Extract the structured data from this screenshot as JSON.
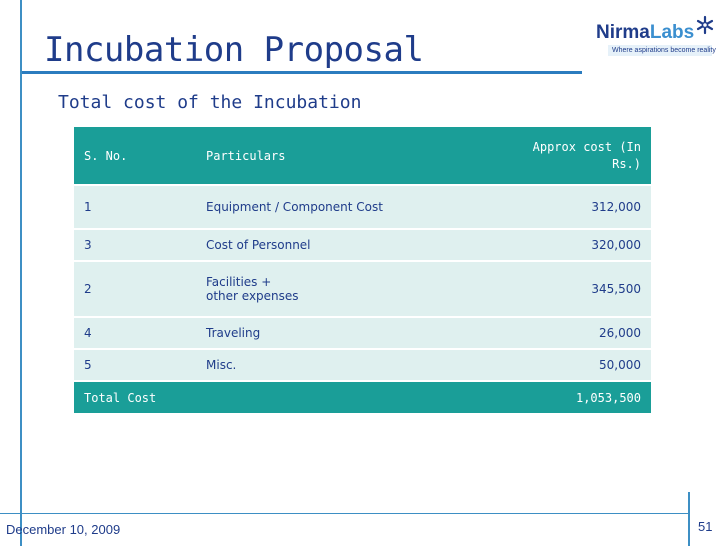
{
  "slide": {
    "title": "Incubation Proposal",
    "subtitle": "Total cost of the Incubation"
  },
  "logo": {
    "brand_part1": "Nirma",
    "brand_part2": "Labs",
    "tagline": "Where aspirations become reality"
  },
  "table": {
    "headers": {
      "sno": "S. No.",
      "particulars": "Particulars",
      "cost": "Approx cost (In Rs.)"
    },
    "rows": [
      {
        "sno": "1",
        "particulars_line1": "Equipment / Component Cost",
        "particulars_line2": "",
        "cost": "312,000"
      },
      {
        "sno": "3",
        "particulars_line1": "Cost of Personnel",
        "particulars_line2": "",
        "cost": "320,000"
      },
      {
        "sno": "2",
        "particulars_line1": "Facilities +",
        "particulars_line2": "other expenses",
        "cost": "345,500"
      },
      {
        "sno": "4",
        "particulars_line1": "Traveling",
        "particulars_line2": "",
        "cost": "26,000"
      },
      {
        "sno": "5",
        "particulars_line1": "Misc.",
        "particulars_line2": "",
        "cost": "50,000"
      }
    ],
    "total": {
      "label": "Total Cost",
      "cost": "1,053,500"
    }
  },
  "footer": {
    "date": "December 10, 2009",
    "page_number": "51"
  },
  "colors": {
    "title": "#1f3c8a",
    "accent_rule": "#2b7cbf",
    "table_header": "#1a9e98",
    "table_body": "#dff0ef"
  }
}
